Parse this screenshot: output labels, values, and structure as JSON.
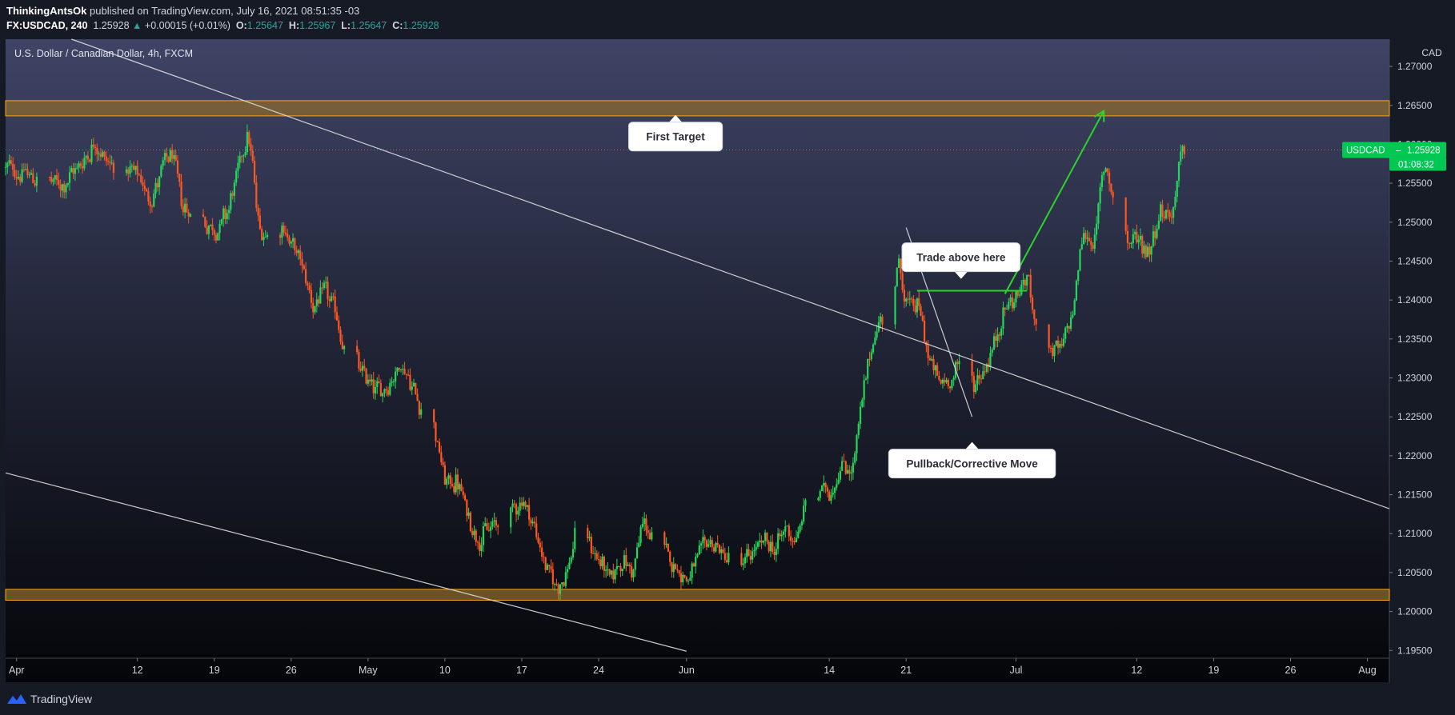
{
  "header": {
    "author": "ThinkingAntsOk",
    "published": " published on TradingView.com, July 16, 2021 08:51:35 -03",
    "symbol": "FX:USDCAD, 240",
    "last": "1.25928",
    "change": "+0.00015 (+0.01%)",
    "o_label": "O:",
    "o": "1.25647",
    "h_label": "H:",
    "h": "1.25967",
    "l_label": "L:",
    "l": "1.25647",
    "c_label": "C:",
    "c": "1.25928"
  },
  "footer": {
    "brand": "TradingView"
  },
  "colors": {
    "up": "#26d65a",
    "down": "#ff5722",
    "zone_fill": "#8a6a2e",
    "zone_border": "#f5a623",
    "line": "#e0e0e0",
    "green_line": "#2ad52a",
    "price_label": "#00c853"
  },
  "chart_data": {
    "type": "candlestick",
    "title": "U.S. Dollar / Canadian Dollar, 4h, FXCM",
    "price_axis_unit": "CAD",
    "ylim": [
      1.194,
      1.2735
    ],
    "y_ticks": [
      "1.27000",
      "1.26500",
      "1.26000",
      "1.25500",
      "1.25000",
      "1.24500",
      "1.24000",
      "1.23500",
      "1.23000",
      "1.22500",
      "1.22000",
      "1.21500",
      "1.21000",
      "1.20500",
      "1.20000",
      "1.19500"
    ],
    "x_ticks": [
      {
        "label": "Apr",
        "date": "2021-04-01"
      },
      {
        "label": "12",
        "date": "2021-04-12"
      },
      {
        "label": "19",
        "date": "2021-04-19"
      },
      {
        "label": "26",
        "date": "2021-04-26"
      },
      {
        "label": "May",
        "date": "2021-05-03"
      },
      {
        "label": "10",
        "date": "2021-05-10"
      },
      {
        "label": "17",
        "date": "2021-05-17"
      },
      {
        "label": "24",
        "date": "2021-05-24"
      },
      {
        "label": "Jun",
        "date": "2021-06-01"
      },
      {
        "label": "14",
        "date": "2021-06-14"
      },
      {
        "label": "21",
        "date": "2021-06-21"
      },
      {
        "label": "Jul",
        "date": "2021-07-01"
      },
      {
        "label": "12",
        "date": "2021-07-12"
      },
      {
        "label": "19",
        "date": "2021-07-19"
      },
      {
        "label": "26",
        "date": "2021-07-26"
      },
      {
        "label": "Aug",
        "date": "2021-08-02"
      }
    ],
    "xlim": [
      "2021-03-31",
      "2021-08-04"
    ],
    "price_path": [
      [
        "2021-03-31",
        1.257
      ],
      [
        "2021-04-02",
        1.256
      ],
      [
        "2021-04-05",
        1.2545
      ],
      [
        "2021-04-07",
        1.258
      ],
      [
        "2021-04-08",
        1.2605
      ],
      [
        "2021-04-09",
        1.258
      ],
      [
        "2021-04-12",
        1.2555
      ],
      [
        "2021-04-13",
        1.253
      ],
      [
        "2021-04-14",
        1.256
      ],
      [
        "2021-04-15",
        1.259
      ],
      [
        "2021-04-16",
        1.252
      ],
      [
        "2021-04-19",
        1.249
      ],
      [
        "2021-04-20",
        1.251
      ],
      [
        "2021-04-21",
        1.256
      ],
      [
        "2021-04-22",
        1.2625
      ],
      [
        "2021-04-23",
        1.2485
      ],
      [
        "2021-04-25",
        1.25
      ],
      [
        "2021-04-27",
        1.244
      ],
      [
        "2021-04-28",
        1.239
      ],
      [
        "2021-04-29",
        1.241
      ],
      [
        "2021-04-30",
        1.238
      ],
      [
        "2021-05-01",
        1.232
      ],
      [
        "2021-05-03",
        1.2295
      ],
      [
        "2021-05-04",
        1.228
      ],
      [
        "2021-05-05",
        1.23
      ],
      [
        "2021-05-06",
        1.232
      ],
      [
        "2021-05-07",
        1.2285
      ],
      [
        "2021-05-09",
        1.223
      ],
      [
        "2021-05-10",
        1.216
      ],
      [
        "2021-05-11",
        1.217
      ],
      [
        "2021-05-12",
        1.212
      ],
      [
        "2021-05-13",
        1.2095
      ],
      [
        "2021-05-14",
        1.2105
      ],
      [
        "2021-05-15",
        1.212
      ],
      [
        "2021-05-17",
        1.2145
      ],
      [
        "2021-05-18",
        1.211
      ],
      [
        "2021-05-19",
        1.206
      ],
      [
        "2021-05-20",
        1.203
      ],
      [
        "2021-05-21",
        1.205
      ],
      [
        "2021-05-22",
        1.211
      ],
      [
        "2021-05-24",
        1.2065
      ],
      [
        "2021-05-25",
        1.204
      ],
      [
        "2021-05-26",
        1.207
      ],
      [
        "2021-05-27",
        1.205
      ],
      [
        "2021-05-28",
        1.212
      ],
      [
        "2021-05-29",
        1.208
      ],
      [
        "2021-05-31",
        1.206
      ],
      [
        "2021-06-01",
        1.204
      ],
      [
        "2021-06-02",
        1.2065
      ],
      [
        "2021-06-03",
        1.2095
      ],
      [
        "2021-06-04",
        1.2075
      ],
      [
        "2021-06-06",
        1.206
      ],
      [
        "2021-06-08",
        1.209
      ],
      [
        "2021-06-09",
        1.208
      ],
      [
        "2021-06-10",
        1.211
      ],
      [
        "2021-06-11",
        1.209
      ],
      [
        "2021-06-12",
        1.216
      ],
      [
        "2021-06-14",
        1.2155
      ],
      [
        "2021-06-15",
        1.219
      ],
      [
        "2021-06-16",
        1.218
      ],
      [
        "2021-06-17",
        1.228
      ],
      [
        "2021-06-18",
        1.236
      ],
      [
        "2021-06-19",
        1.2385
      ],
      [
        "2021-06-20",
        1.2465
      ],
      [
        "2021-06-21",
        1.239
      ],
      [
        "2021-06-22",
        1.2395
      ],
      [
        "2021-06-23",
        1.232
      ],
      [
        "2021-06-24",
        1.229
      ],
      [
        "2021-06-25",
        1.23
      ],
      [
        "2021-06-26",
        1.232
      ],
      [
        "2021-06-27",
        1.229
      ],
      [
        "2021-06-28",
        1.231
      ],
      [
        "2021-06-29",
        1.2345
      ],
      [
        "2021-06-30",
        1.2395
      ],
      [
        "2021-07-01",
        1.2405
      ],
      [
        "2021-07-02",
        1.243
      ],
      [
        "2021-07-03",
        1.234
      ],
      [
        "2021-07-05",
        1.233
      ],
      [
        "2021-07-06",
        1.238
      ],
      [
        "2021-07-07",
        1.249
      ],
      [
        "2021-07-08",
        1.247
      ],
      [
        "2021-07-09",
        1.258
      ],
      [
        "2021-07-10",
        1.252
      ],
      [
        "2021-07-11",
        1.246
      ],
      [
        "2021-07-12",
        1.248
      ],
      [
        "2021-07-13",
        1.246
      ],
      [
        "2021-07-14",
        1.252
      ],
      [
        "2021-07-15",
        1.25
      ],
      [
        "2021-07-16",
        1.259
      ]
    ],
    "zones": [
      {
        "low": 1.26365,
        "high": 1.2656
      },
      {
        "low": 1.20145,
        "high": 1.20285
      }
    ],
    "current_price": {
      "symbol": "USDCAD",
      "price": "1.25928",
      "countdown": "01:08:32",
      "value": 1.25928
    },
    "trend_lines": [
      {
        "from": [
          "2021-04-06",
          1.2735
        ],
        "to": [
          "2021-08-04",
          1.2132
        ]
      },
      {
        "from": [
          "2021-03-31",
          1.2178
        ],
        "to": [
          "2021-06-01",
          1.1949
        ]
      },
      {
        "from": [
          "2021-06-21",
          1.2493
        ],
        "to": [
          "2021-06-27",
          1.225
        ]
      }
    ],
    "green_lines": [
      {
        "from": [
          "2021-06-22",
          1.2412
        ],
        "to": [
          "2021-07-02",
          1.2412
        ]
      }
    ],
    "arrow": {
      "from": [
        "2021-06-30",
        1.2408
      ],
      "to": [
        "2021-07-09",
        1.2643
      ]
    },
    "annotations": [
      {
        "text": "First Target",
        "date": "2021-05-31",
        "price": 1.261,
        "pointer": "up"
      },
      {
        "text": "Trade above here",
        "date": "2021-06-26",
        "price": 1.2455,
        "pointer": "down"
      },
      {
        "text": "Pullback/Corrective Move",
        "date": "2021-06-27",
        "price": 1.219,
        "pointer": "up"
      }
    ]
  }
}
